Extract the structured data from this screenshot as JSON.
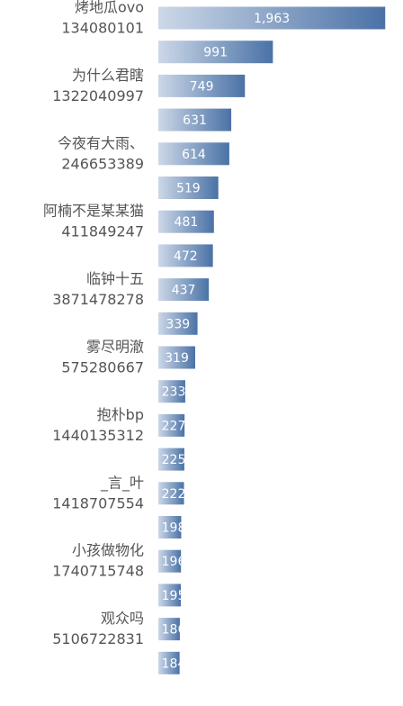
{
  "chart_data": {
    "type": "barh",
    "categories": [
      "烤地瓜ovo",
      null,
      "为什么君瞎",
      null,
      "今夜有大雨、",
      null,
      "阿楠不是某某猫",
      null,
      "临钟十五",
      null,
      "雾尽明澈",
      null,
      "抱朴bp",
      null,
      "_言_叶",
      null,
      "小孩做物化",
      null,
      "观众吗",
      null
    ],
    "category_ids": [
      "134080101",
      null,
      "1322040997",
      null,
      "246653389",
      null,
      "411849247",
      null,
      "3871478278",
      null,
      "575280667",
      null,
      "1440135312",
      null,
      "1418707554",
      null,
      "1740715748",
      null,
      "5106722831",
      null
    ],
    "values": [
      1963,
      991,
      749,
      631,
      614,
      519,
      481,
      472,
      437,
      339,
      319,
      233,
      227,
      225,
      222,
      198,
      196,
      195,
      186,
      184
    ],
    "value_labels": [
      "1,963",
      "991",
      "749",
      "631",
      "614",
      "519",
      "481",
      "472",
      "437",
      "339",
      "319",
      "233",
      "227",
      "225",
      "222",
      "198",
      "196",
      "195",
      "186",
      "184"
    ],
    "xlim": [
      0,
      2000
    ],
    "color": [
      "#cdd8e8",
      "#4a72a6"
    ]
  }
}
